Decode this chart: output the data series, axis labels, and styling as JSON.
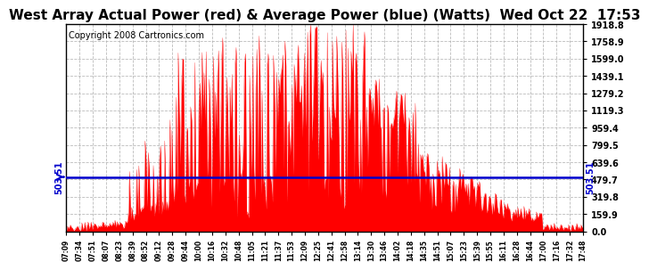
{
  "title": "West Array Actual Power (red) & Average Power (blue) (Watts)  Wed Oct 22  17:53",
  "copyright": "Copyright 2008 Cartronics.com",
  "avg_power": 503.51,
  "ymax": 1918.8,
  "yticks": [
    0.0,
    159.9,
    319.8,
    479.7,
    639.6,
    799.5,
    959.4,
    1119.3,
    1279.2,
    1439.1,
    1599.0,
    1758.9,
    1918.8
  ],
  "xtick_labels": [
    "07:09",
    "07:34",
    "07:51",
    "08:07",
    "08:23",
    "08:39",
    "08:52",
    "09:12",
    "09:28",
    "09:44",
    "10:00",
    "10:16",
    "10:32",
    "10:48",
    "11:05",
    "11:21",
    "11:37",
    "11:53",
    "12:09",
    "12:25",
    "12:41",
    "12:58",
    "13:14",
    "13:30",
    "13:46",
    "14:02",
    "14:18",
    "14:35",
    "14:51",
    "15:07",
    "15:23",
    "15:39",
    "15:55",
    "16:11",
    "16:28",
    "16:44",
    "17:00",
    "17:16",
    "17:32",
    "17:48"
  ],
  "bg_color": "#ffffff",
  "plot_bg_color": "#ffffff",
  "grid_color": "#aaaaaa",
  "avg_line_color": "#0000cc",
  "fill_color": "#ff0000",
  "title_color": "#000000",
  "title_fontsize": 11,
  "copyright_fontsize": 7,
  "avg_label_fontsize": 8
}
